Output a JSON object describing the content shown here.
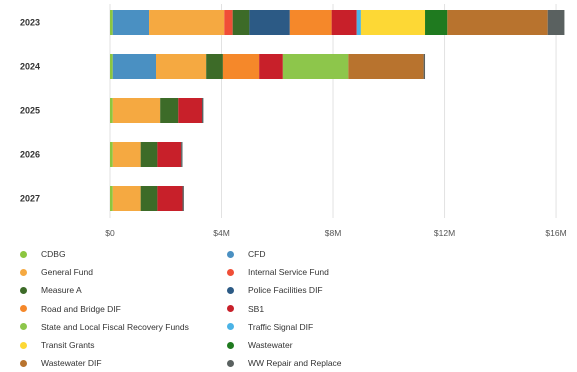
{
  "chart_data": {
    "type": "bar",
    "orientation": "horizontal",
    "stacked": true,
    "categories": [
      "2023",
      "2024",
      "2025",
      "2026",
      "2027"
    ],
    "x_ticks": [
      0,
      4,
      8,
      12,
      16
    ],
    "x_tick_labels": [
      "$0",
      "$4M",
      "$8M",
      "$12M",
      "$16M"
    ],
    "xlim": [
      0,
      16.5
    ],
    "unit": "$M",
    "grid": true,
    "legend_position": "bottom",
    "series": [
      {
        "name": "CDBG",
        "color": "#8cc63f",
        "values": [
          0.1,
          0.1,
          0.1,
          0.1,
          0.1
        ]
      },
      {
        "name": "CFD",
        "color": "#4a90c2",
        "values": [
          1.3,
          1.55,
          0,
          0,
          0
        ]
      },
      {
        "name": "General Fund",
        "color": "#f5a941",
        "values": [
          2.7,
          1.8,
          1.7,
          1.0,
          1.0
        ]
      },
      {
        "name": "Internal Service Fund",
        "color": "#f04e37",
        "values": [
          0.3,
          0,
          0,
          0,
          0
        ]
      },
      {
        "name": "Measure A",
        "color": "#3d6b28",
        "values": [
          0.6,
          0.6,
          0.65,
          0.6,
          0.6
        ]
      },
      {
        "name": "Police Facilities DIF",
        "color": "#2c5a85",
        "values": [
          1.45,
          0,
          0,
          0,
          0
        ]
      },
      {
        "name": "Road and Bridge DIF",
        "color": "#f5882a",
        "values": [
          1.5,
          1.3,
          0,
          0,
          0
        ]
      },
      {
        "name": "SB1",
        "color": "#c8202a",
        "values": [
          0.9,
          0.85,
          0.85,
          0.85,
          0.9
        ]
      },
      {
        "name": "State and Local Fiscal Recovery Funds",
        "color": "#8dc64b",
        "values": [
          0,
          2.35,
          0,
          0,
          0
        ]
      },
      {
        "name": "Traffic Signal DIF",
        "color": "#4bb3e6",
        "values": [
          0.15,
          0,
          0,
          0,
          0
        ]
      },
      {
        "name": "Transit Grants",
        "color": "#fdd835",
        "values": [
          2.3,
          0,
          0,
          0,
          0
        ]
      },
      {
        "name": "Wastewater",
        "color": "#1f7a1f",
        "values": [
          0.8,
          0,
          0,
          0,
          0
        ]
      },
      {
        "name": "Wastewater DIF",
        "color": "#b8732e",
        "values": [
          3.6,
          2.7,
          0,
          0,
          0
        ]
      },
      {
        "name": "WW Repair and Replace",
        "color": "#5a6160",
        "values": [
          0.6,
          0.05,
          0.05,
          0.05,
          0.05
        ]
      }
    ]
  }
}
